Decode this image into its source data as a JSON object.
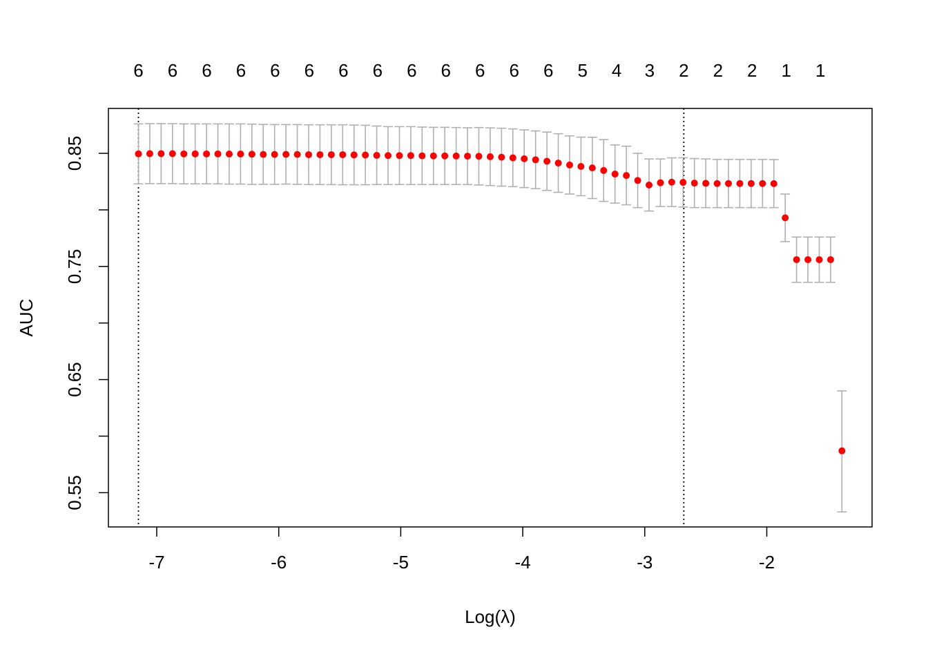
{
  "chart_data": {
    "type": "scatter",
    "xlabel": "Log(λ)",
    "ylabel": "AUC",
    "xlim": [
      -7.37,
      -1.2
    ],
    "ylim": [
      0.53,
      0.89
    ],
    "x_ticks": [
      -7,
      -6,
      -5,
      -4,
      -3,
      -2
    ],
    "x_tick_labels": [
      "-7",
      "-6",
      "-5",
      "-4",
      "-3",
      "-2"
    ],
    "y_ticks": [
      0.55,
      0.6,
      0.65,
      0.7,
      0.75,
      0.8,
      0.85
    ],
    "y_tick_labels": [
      "0.55",
      "",
      "0.65",
      "",
      "0.75",
      "",
      "0.85"
    ],
    "top_axis": {
      "x": [
        -7.15,
        -6.87,
        -6.59,
        -6.31,
        -6.03,
        -5.75,
        -5.47,
        -5.19,
        -4.91,
        -4.63,
        -4.35,
        -4.07,
        -3.79,
        -3.51,
        -3.23,
        -2.96,
        -2.68,
        -2.4,
        -2.12,
        -1.84,
        -1.56
      ],
      "labels": [
        "6",
        "6",
        "6",
        "6",
        "6",
        "6",
        "6",
        "6",
        "6",
        "6",
        "6",
        "6",
        "6",
        "5",
        "4",
        "3",
        "2",
        "2",
        "2",
        "1",
        "1"
      ]
    },
    "vlines": [
      -7.15,
      -2.68
    ],
    "points": {
      "x": [
        -7.15,
        -7.057,
        -6.964,
        -6.871,
        -6.778,
        -6.685,
        -6.592,
        -6.499,
        -6.406,
        -6.313,
        -6.22,
        -6.127,
        -6.034,
        -5.941,
        -5.848,
        -5.755,
        -5.662,
        -5.569,
        -5.476,
        -5.383,
        -5.29,
        -5.197,
        -5.104,
        -5.011,
        -4.918,
        -4.825,
        -4.732,
        -4.639,
        -4.546,
        -4.453,
        -4.36,
        -4.267,
        -4.174,
        -4.081,
        -3.988,
        -3.895,
        -3.802,
        -3.709,
        -3.616,
        -3.523,
        -3.43,
        -3.337,
        -3.244,
        -3.151,
        -3.058,
        -2.965,
        -2.872,
        -2.779,
        -2.686,
        -2.593,
        -2.5,
        -2.407,
        -2.314,
        -2.221,
        -2.128,
        -2.035,
        -1.942,
        -1.849,
        -1.756,
        -1.663,
        -1.57,
        -1.477,
        -1.384
      ],
      "y": [
        0.8495,
        0.8497,
        0.8497,
        0.8497,
        0.8495,
        0.8495,
        0.8495,
        0.8495,
        0.8494,
        0.8494,
        0.8492,
        0.849,
        0.849,
        0.8491,
        0.849,
        0.8488,
        0.8488,
        0.8488,
        0.8488,
        0.8486,
        0.8485,
        0.8482,
        0.848,
        0.848,
        0.848,
        0.8478,
        0.8477,
        0.8477,
        0.8476,
        0.8475,
        0.8474,
        0.847,
        0.8466,
        0.846,
        0.8452,
        0.8443,
        0.843,
        0.8414,
        0.8397,
        0.8384,
        0.8371,
        0.8348,
        0.8317,
        0.8304,
        0.826,
        0.822,
        0.824,
        0.8245,
        0.8243,
        0.8237,
        0.8235,
        0.8233,
        0.8233,
        0.8233,
        0.8233,
        0.8233,
        0.8232,
        0.793,
        0.756,
        0.756,
        0.756,
        0.756,
        0.587
      ],
      "lower": [
        0.823,
        0.8232,
        0.8232,
        0.8232,
        0.823,
        0.823,
        0.823,
        0.823,
        0.8228,
        0.8228,
        0.8225,
        0.8226,
        0.8226,
        0.8228,
        0.8226,
        0.8224,
        0.8224,
        0.8223,
        0.8222,
        0.8222,
        0.8222,
        0.8224,
        0.8224,
        0.8224,
        0.8224,
        0.8224,
        0.8224,
        0.8224,
        0.8224,
        0.8224,
        0.822,
        0.8215,
        0.821,
        0.8205,
        0.8197,
        0.8188,
        0.8172,
        0.8155,
        0.814,
        0.8125,
        0.81,
        0.8075,
        0.806,
        0.8045,
        0.802,
        0.799,
        0.803,
        0.803,
        0.8025,
        0.802,
        0.802,
        0.802,
        0.802,
        0.802,
        0.802,
        0.802,
        0.802,
        0.772,
        0.736,
        0.736,
        0.736,
        0.736,
        0.533
      ],
      "upper": [
        0.876,
        0.8762,
        0.8762,
        0.8762,
        0.876,
        0.876,
        0.876,
        0.876,
        0.876,
        0.876,
        0.8758,
        0.8755,
        0.8754,
        0.8754,
        0.8754,
        0.8752,
        0.8752,
        0.8752,
        0.8752,
        0.875,
        0.8748,
        0.8741,
        0.8736,
        0.8736,
        0.8736,
        0.8732,
        0.873,
        0.873,
        0.8728,
        0.8726,
        0.8728,
        0.8725,
        0.8722,
        0.8716,
        0.8707,
        0.8698,
        0.8688,
        0.8673,
        0.8654,
        0.8643,
        0.8642,
        0.8621,
        0.8574,
        0.8563,
        0.85,
        0.845,
        0.845,
        0.846,
        0.8461,
        0.8454,
        0.845,
        0.8446,
        0.8446,
        0.8446,
        0.8446,
        0.8446,
        0.8444,
        0.814,
        0.776,
        0.776,
        0.776,
        0.776,
        0.64
      ]
    },
    "grid": false,
    "colors": {
      "points": "#ff0000",
      "error_bars": "#b0b0b0",
      "vlines": "#000000",
      "axes": "#000000"
    }
  }
}
